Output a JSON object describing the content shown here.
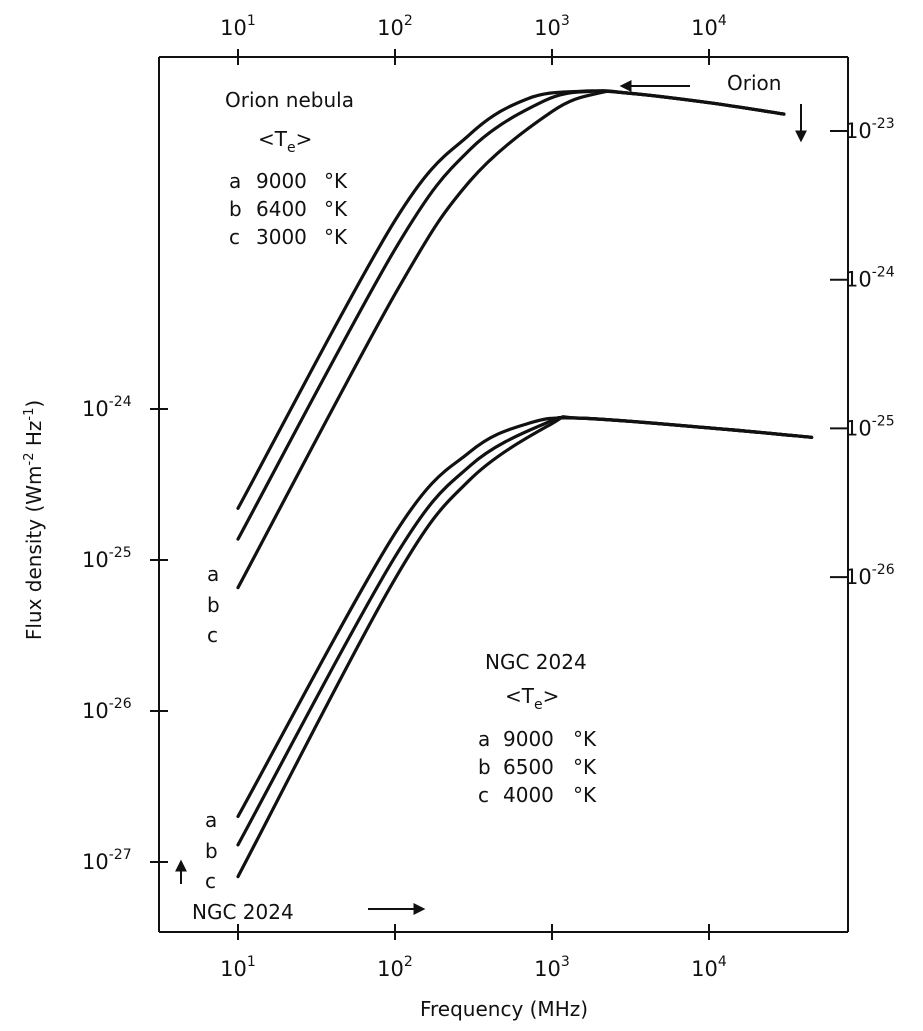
{
  "chart_data": {
    "type": "line",
    "xlabel": "Frequency (MHz)",
    "x_scale": "log",
    "xlim": [
      3.3,
      90000
    ],
    "x_ticks": [
      10,
      100,
      1000,
      10000
    ],
    "x_tick_labels": [
      {
        "base": "10",
        "exp": "1"
      },
      {
        "base": "10",
        "exp": "2"
      },
      {
        "base": "10",
        "exp": "3"
      },
      {
        "base": "10",
        "exp": "4"
      }
    ],
    "left_axis": {
      "label": "Flux density (Wm-2 Hz-1)",
      "label_parts": [
        "Flux density (Wm",
        "-2",
        " Hz",
        "-1",
        ")"
      ],
      "scale": "log",
      "ticks": [
        {
          "value": 1e-24,
          "base": "10",
          "exp": "-24"
        },
        {
          "value": 1e-25,
          "base": "10",
          "exp": "-25"
        },
        {
          "value": 1e-26,
          "base": "10",
          "exp": "-26"
        },
        {
          "value": 1e-27,
          "base": "10",
          "exp": "-27"
        }
      ],
      "applies_to": "NGC 2024"
    },
    "right_axis": {
      "scale": "log",
      "ticks": [
        {
          "value": 1e-23,
          "base": "10",
          "exp": "-23"
        },
        {
          "value": 1e-24,
          "base": "10",
          "exp": "-24"
        },
        {
          "value": 1e-25,
          "base": "10",
          "exp": "-25"
        },
        {
          "value": 1e-26,
          "base": "10",
          "exp": "-26"
        }
      ],
      "applies_to": "Orion"
    },
    "groups": [
      {
        "name": "Orion nebula",
        "axis": "right",
        "heading": "<T",
        "heading_sub": "e",
        "heading_close": ">",
        "series": [
          {
            "name": "a",
            "legend_letter": "a",
            "legend_value": "9000",
            "legend_unit": "°K",
            "points": [
              [
                10,
                2.9e-26
              ],
              [
                100,
                2.5e-24
              ],
              [
                300,
                9.5e-24
              ],
              [
                700,
                1.65e-23
              ],
              [
                1500,
                1.85e-23
              ],
              [
                3000,
                1.8e-23
              ],
              [
                10000,
                1.55e-23
              ],
              [
                30000,
                1.3e-23
              ]
            ]
          },
          {
            "name": "b",
            "legend_letter": "b",
            "legend_value": "6400",
            "legend_unit": "°K",
            "points": [
              [
                10,
                1.8e-26
              ],
              [
                100,
                1.6e-24
              ],
              [
                300,
                7.5e-24
              ],
              [
                900,
                1.6e-23
              ],
              [
                1800,
                1.85e-23
              ],
              [
                3000,
                1.8e-23
              ],
              [
                10000,
                1.55e-23
              ],
              [
                30000,
                1.3e-23
              ]
            ]
          },
          {
            "name": "c",
            "legend_letter": "c",
            "legend_value": "3000",
            "legend_unit": "°K",
            "points": [
              [
                10,
                8.5e-27
              ],
              [
                100,
                8e-25
              ],
              [
                300,
                4.6e-24
              ],
              [
                1000,
                1.35e-23
              ],
              [
                2000,
                1.8e-23
              ],
              [
                3000,
                1.8e-23
              ],
              [
                10000,
                1.55e-23
              ],
              [
                30000,
                1.3e-23
              ]
            ]
          }
        ],
        "end_labels": [
          "a",
          "b",
          "c"
        ]
      },
      {
        "name": "NGC 2024",
        "axis": "left",
        "heading": "<T",
        "heading_sub": "e",
        "heading_close": ">",
        "series": [
          {
            "name": "a",
            "legend_letter": "a",
            "legend_value": "9000",
            "legend_unit": "°K",
            "points": [
              [
                10,
                2e-27
              ],
              [
                100,
                1.5e-25
              ],
              [
                300,
                5.2e-25
              ],
              [
                700,
                8e-25
              ],
              [
                1500,
                8.7e-25
              ],
              [
                10000,
                7.5e-25
              ],
              [
                45000,
                6.5e-25
              ]
            ]
          },
          {
            "name": "b",
            "legend_letter": "b",
            "legend_value": "6500",
            "legend_unit": "°K",
            "points": [
              [
                10,
                1.3e-27
              ],
              [
                100,
                1.05e-25
              ],
              [
                300,
                4.2e-25
              ],
              [
                900,
                8e-25
              ],
              [
                1500,
                8.7e-25
              ],
              [
                10000,
                7.5e-25
              ],
              [
                45000,
                6.5e-25
              ]
            ]
          },
          {
            "name": "c",
            "legend_letter": "c",
            "legend_value": "4000",
            "legend_unit": "°K",
            "points": [
              [
                10,
                8e-28
              ],
              [
                100,
                7.5e-26
              ],
              [
                300,
                3.4e-25
              ],
              [
                1000,
                8e-25
              ],
              [
                1500,
                8.7e-25
              ],
              [
                10000,
                7.5e-25
              ],
              [
                45000,
                6.5e-25
              ]
            ]
          }
        ],
        "end_labels": [
          "a",
          "b",
          "c"
        ]
      }
    ],
    "annotations": {
      "orion_label": "Orion",
      "ngc_label": "NGC 2024"
    }
  }
}
